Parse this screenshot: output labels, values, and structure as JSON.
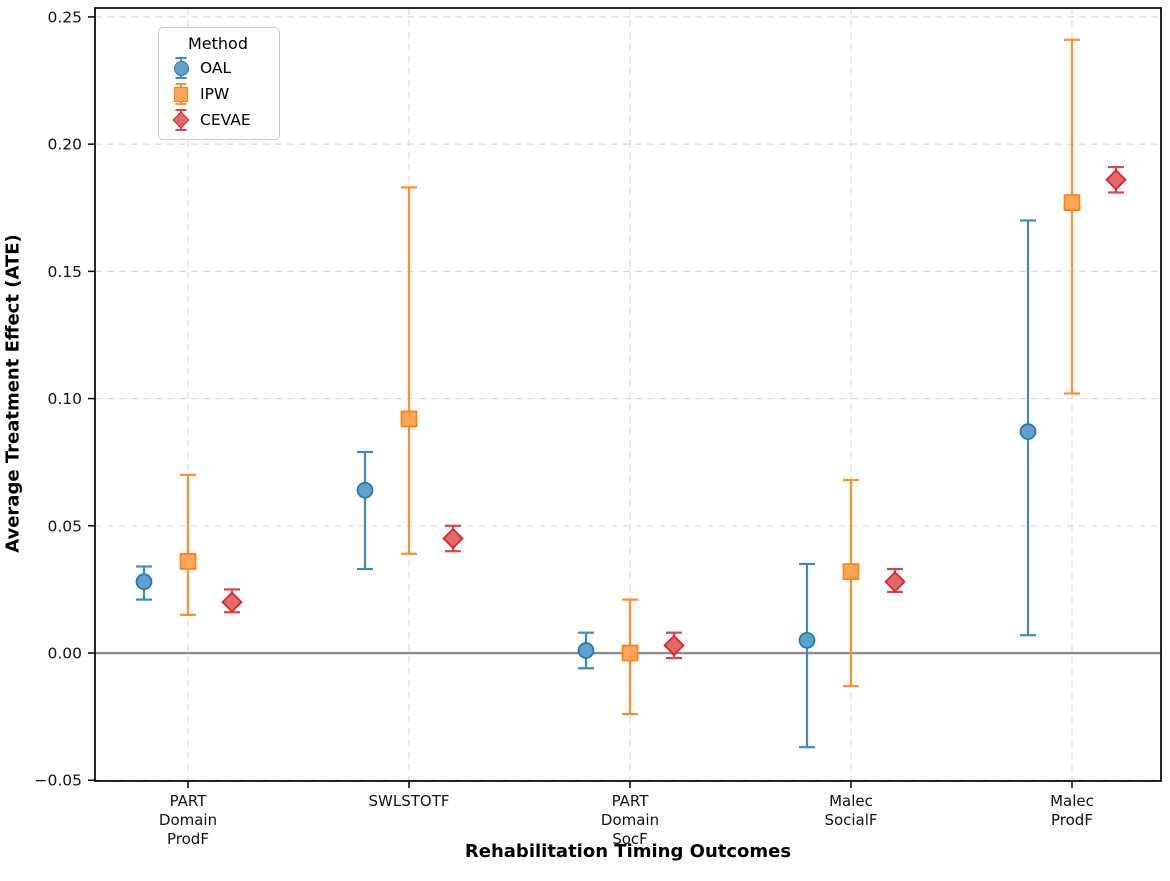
{
  "legend": {
    "title": "Method",
    "position": "upper-left"
  },
  "chart_data": {
    "type": "scatter",
    "subtype": "errorbar-point-plot",
    "title": "",
    "xlabel": "Rehabilitation Timing Outcomes",
    "ylabel": "Average Treatment Effect (ATE)",
    "categories": [
      [
        "PART",
        "Domain",
        "ProdF"
      ],
      [
        "SWLSTOTF"
      ],
      [
        "PART",
        "Domain",
        "SocF"
      ],
      [
        "Malec",
        "SocialF"
      ],
      [
        "Malec",
        "ProdF"
      ]
    ],
    "yticks": [
      -0.05,
      0.0,
      0.05,
      0.1,
      0.15,
      0.2,
      0.25
    ],
    "ytick_labels": [
      "−0.05",
      "0.00",
      "0.05",
      "0.10",
      "0.15",
      "0.20",
      "0.25"
    ],
    "ylim": [
      -0.0503,
      0.2535
    ],
    "grid": "dashed-both-axes",
    "zero_line": true,
    "zero_line_color": "#8c8c8c",
    "grid_color": "#dbdbdb",
    "legend_position": "upper-left",
    "series": [
      {
        "name": "OAL",
        "marker": "circle",
        "colors": {
          "fill": "#62A0CB",
          "edge": "#1F77B4",
          "error": "#4089BE"
        },
        "values": [
          0.028,
          0.064,
          0.001,
          0.005,
          0.087
        ],
        "ci_low": [
          0.021,
          0.033,
          -0.006,
          -0.037,
          0.007
        ],
        "ci_high": [
          0.034,
          0.079,
          0.008,
          0.035,
          0.17
        ]
      },
      {
        "name": "IPW",
        "marker": "square",
        "colors": {
          "fill": "#FFA556",
          "edge": "#FF7F0E",
          "error": "#FF8E2B"
        },
        "values": [
          0.036,
          0.092,
          0.0,
          0.032,
          0.177
        ],
        "ci_low": [
          0.015,
          0.039,
          -0.024,
          -0.013,
          0.102
        ],
        "ci_high": [
          0.07,
          0.183,
          0.021,
          0.068,
          0.241
        ]
      },
      {
        "name": "CEVAE",
        "marker": "diamond",
        "colors": {
          "fill": "#E26869",
          "edge": "#D62728",
          "error": "#DB4445"
        },
        "values": [
          0.02,
          0.045,
          0.003,
          0.028,
          0.186
        ],
        "ci_low": [
          0.016,
          0.04,
          -0.002,
          0.024,
          0.181
        ],
        "ci_high": [
          0.025,
          0.05,
          0.008,
          0.033,
          0.191
        ]
      }
    ]
  }
}
